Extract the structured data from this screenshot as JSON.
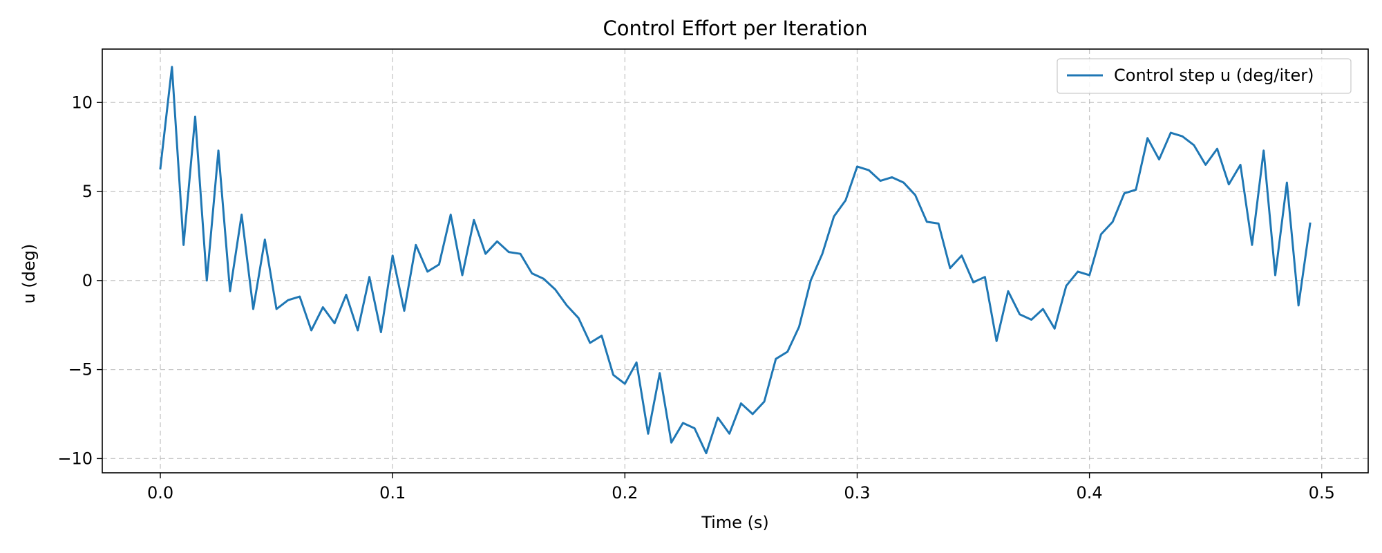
{
  "chart_data": {
    "type": "line",
    "title": "Control Effort per Iteration",
    "xlabel": "Time (s)",
    "ylabel": "u (deg)",
    "xlim": [
      -0.025,
      0.52
    ],
    "ylim": [
      -10.8,
      13.0
    ],
    "grid": true,
    "legend_position": "top-right",
    "x_ticks": [
      0.0,
      0.1,
      0.2,
      0.3,
      0.4,
      0.5
    ],
    "x_tick_labels": [
      "0.0",
      "0.1",
      "0.2",
      "0.3",
      "0.4",
      "0.5"
    ],
    "y_ticks": [
      -10,
      -5,
      0,
      5,
      10
    ],
    "y_tick_labels": [
      "−10",
      "−5",
      "0",
      "5",
      "10"
    ],
    "series": [
      {
        "name": "Control step u (deg/iter)",
        "color": "#1f77b4",
        "x": [
          0.0,
          0.005,
          0.01,
          0.015,
          0.02,
          0.025,
          0.03,
          0.035,
          0.04,
          0.045,
          0.05,
          0.055,
          0.06,
          0.065,
          0.07,
          0.075,
          0.08,
          0.085,
          0.09,
          0.095,
          0.1,
          0.105,
          0.11,
          0.115,
          0.12,
          0.125,
          0.13,
          0.135,
          0.14,
          0.145,
          0.15,
          0.155,
          0.16,
          0.165,
          0.17,
          0.175,
          0.18,
          0.185,
          0.19,
          0.195,
          0.2,
          0.205,
          0.21,
          0.215,
          0.22,
          0.225,
          0.23,
          0.235,
          0.24,
          0.245,
          0.25,
          0.255,
          0.26,
          0.265,
          0.27,
          0.275,
          0.28,
          0.285,
          0.29,
          0.295,
          0.3,
          0.305,
          0.31,
          0.315,
          0.32,
          0.325,
          0.33,
          0.335,
          0.34,
          0.345,
          0.35,
          0.355,
          0.36,
          0.365,
          0.37,
          0.375,
          0.38,
          0.385,
          0.39,
          0.395,
          0.4,
          0.405,
          0.41,
          0.415,
          0.42,
          0.425,
          0.43,
          0.435,
          0.44,
          0.445,
          0.45,
          0.455,
          0.46,
          0.465,
          0.47,
          0.475,
          0.48,
          0.485,
          0.49,
          0.495
        ],
        "values": [
          6.3,
          12.0,
          2.0,
          9.2,
          0.0,
          7.3,
          -0.6,
          3.7,
          -1.6,
          2.3,
          -1.6,
          -1.1,
          -0.9,
          -2.8,
          -1.5,
          -2.4,
          -0.8,
          -2.8,
          0.2,
          -2.9,
          1.4,
          -1.7,
          2.0,
          0.5,
          0.9,
          3.7,
          0.3,
          3.4,
          1.5,
          2.2,
          1.6,
          1.5,
          0.4,
          0.1,
          -0.5,
          -1.4,
          -2.1,
          -3.5,
          -3.1,
          -5.3,
          -5.8,
          -4.6,
          -8.6,
          -5.2,
          -9.1,
          -8.0,
          -8.3,
          -9.7,
          -7.7,
          -8.6,
          -6.9,
          -7.5,
          -6.8,
          -4.4,
          -4.0,
          -2.6,
          0.0,
          1.5,
          3.6,
          4.5,
          6.4,
          6.2,
          5.6,
          5.8,
          5.5,
          4.8,
          3.3,
          3.2,
          0.7,
          1.4,
          -0.1,
          0.2,
          -3.4,
          -0.6,
          -1.9,
          -2.2,
          -1.6,
          -2.7,
          -0.3,
          0.5,
          0.3,
          2.6,
          3.3,
          4.9,
          5.1,
          8.0,
          6.8,
          8.3,
          8.1,
          7.6,
          6.5,
          7.4,
          5.4,
          6.5,
          2.0,
          7.3,
          0.3,
          5.5,
          -1.4,
          3.2
        ]
      }
    ]
  }
}
